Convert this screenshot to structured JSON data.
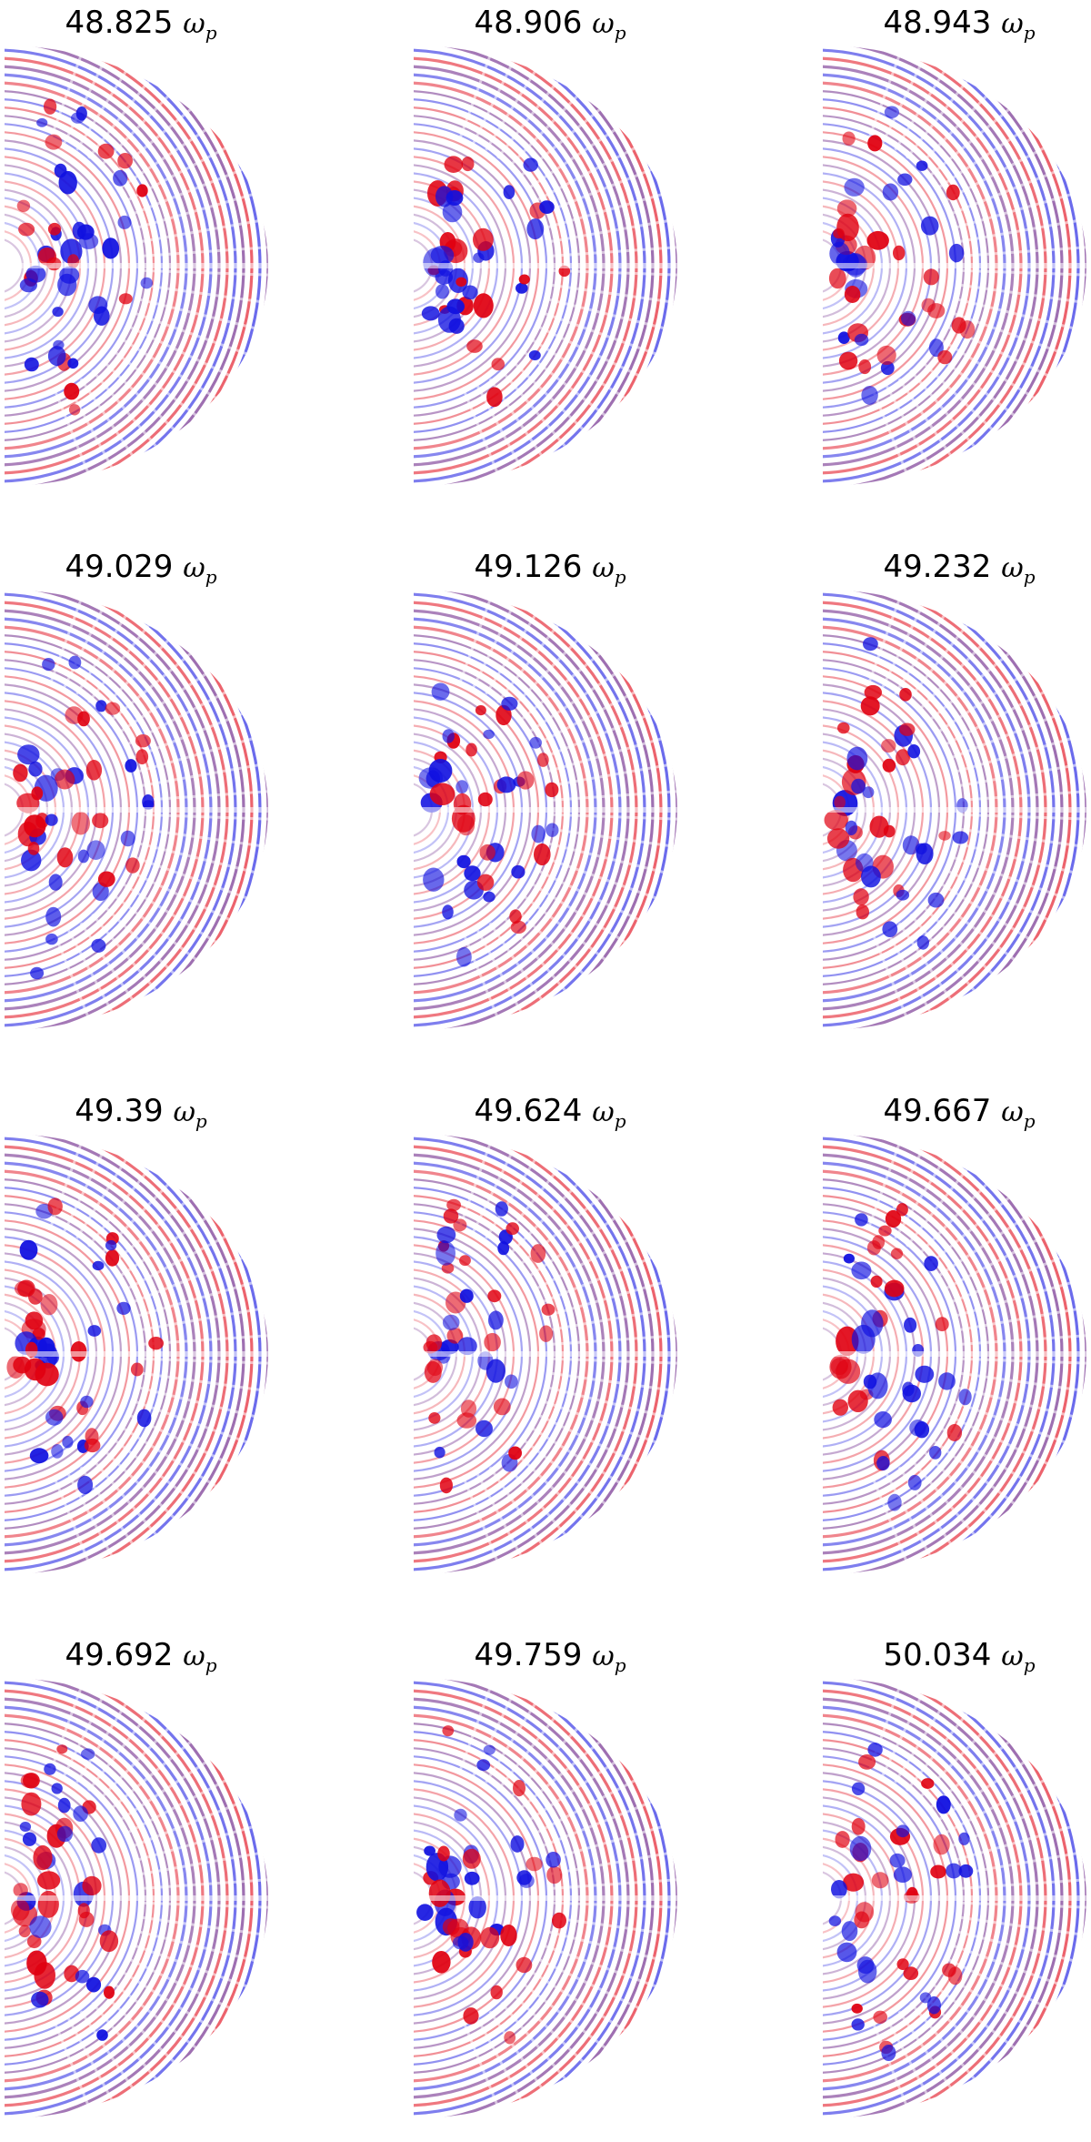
{
  "unit_symbol": "ω",
  "unit_subscript": "p",
  "panels": [
    {
      "freq": "48.825"
    },
    {
      "freq": "48.906"
    },
    {
      "freq": "48.943"
    },
    {
      "freq": "49.029"
    },
    {
      "freq": "49.126"
    },
    {
      "freq": "49.232"
    },
    {
      "freq": "49.39"
    },
    {
      "freq": "49.624"
    },
    {
      "freq": "49.667"
    },
    {
      "freq": "49.692"
    },
    {
      "freq": "49.759"
    },
    {
      "freq": "50.034"
    }
  ],
  "colors": {
    "positive": "#e00010",
    "negative": "#1010e0",
    "edge": "#5a0a7a",
    "background": "#ffffff"
  }
}
